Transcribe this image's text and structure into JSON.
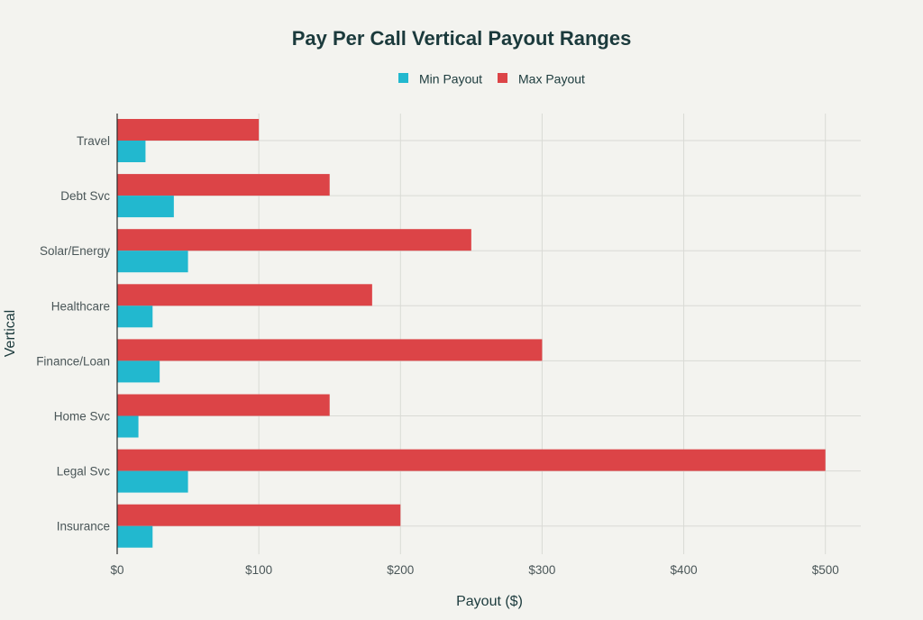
{
  "chart_data": {
    "type": "bar",
    "orientation": "horizontal",
    "title": "Pay Per Call Vertical Payout Ranges",
    "xlabel": "Payout ($)",
    "ylabel": "Vertical",
    "categories": [
      "Travel",
      "Debt Svc",
      "Solar/Energy",
      "Healthcare",
      "Finance/Loan",
      "Home Svc",
      "Legal Svc",
      "Insurance"
    ],
    "series": [
      {
        "name": "Min Payout",
        "color": "#22b8cf",
        "values": [
          20,
          40,
          50,
          25,
          30,
          15,
          50,
          25
        ]
      },
      {
        "name": "Max Payout",
        "color": "#dc4447",
        "values": [
          100,
          150,
          250,
          180,
          300,
          150,
          500,
          200
        ]
      }
    ],
    "xlim": [
      0,
      525
    ],
    "xticks": [
      0,
      100,
      200,
      300,
      400,
      500
    ],
    "xtick_labels": [
      "$0",
      "$100",
      "$200",
      "$300",
      "$400",
      "$500"
    ],
    "legend_position": "top-center",
    "grid": true
  },
  "colors": {
    "background": "#f3f3ef",
    "text": "#1b3a3c",
    "tick_text": "#4a5658",
    "grid": "#d9dad5",
    "axis": "#2b2b2b"
  }
}
